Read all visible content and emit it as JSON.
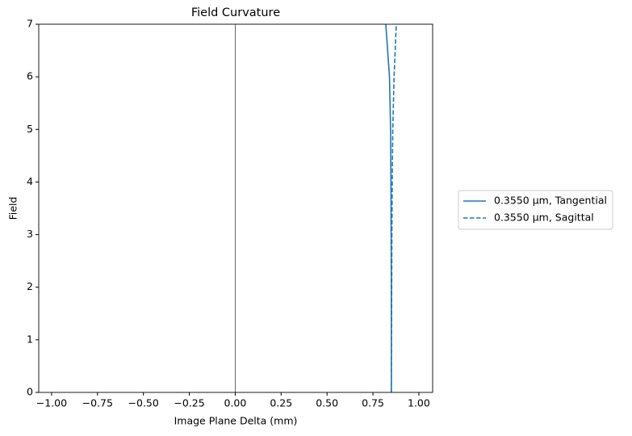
{
  "chart_data": {
    "type": "line",
    "title": "Field Curvature",
    "xlabel": "Image Plane Delta (mm)",
    "ylabel": "Field",
    "y": [
      0,
      1,
      2,
      3,
      4,
      5,
      6,
      7
    ],
    "series": [
      {
        "name": "0.3550 µm, Tangential",
        "color": "#1f77b4",
        "dash": "solid",
        "x": [
          0.85,
          0.85,
          0.85,
          0.849,
          0.848,
          0.846,
          0.84,
          0.82
        ]
      },
      {
        "name": "0.3550 µm, Sagittal",
        "color": "#1f77b4",
        "dash": "dashed",
        "x": [
          0.85,
          0.851,
          0.852,
          0.853,
          0.855,
          0.858,
          0.865,
          0.877
        ]
      }
    ],
    "vline_x": 0,
    "xlim": [
      -1.07,
      1.075
    ],
    "xticks": [
      {
        "value": -1,
        "label": "−1.00"
      },
      {
        "value": -0.75,
        "label": "−0.75"
      },
      {
        "value": -0.5,
        "label": "−0.50"
      },
      {
        "value": -0.25,
        "label": "−0.25"
      },
      {
        "value": 0,
        "label": "0.00"
      },
      {
        "value": 0.25,
        "label": "0.25"
      },
      {
        "value": 0.5,
        "label": "0.50"
      },
      {
        "value": 0.75,
        "label": "0.75"
      },
      {
        "value": 1,
        "label": "1.00"
      }
    ],
    "ylim": [
      0,
      7
    ],
    "yticks": [
      0,
      1,
      2,
      3,
      4,
      5,
      6,
      7
    ],
    "legend": "right",
    "grid": false
  }
}
